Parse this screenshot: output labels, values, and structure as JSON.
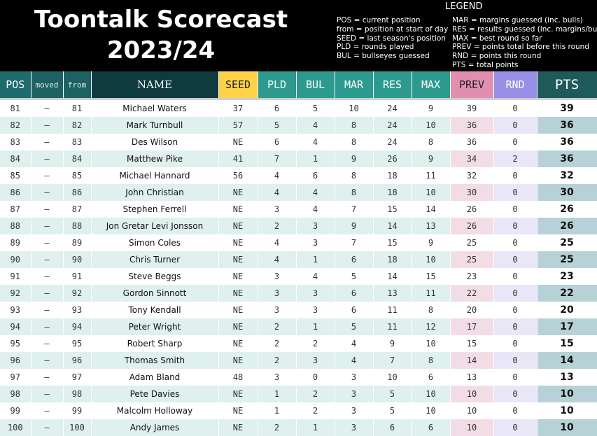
{
  "header": {
    "title_line1": "Toontalk Scorecast",
    "title_line2": "2023/24",
    "legend_title": "LEGEND",
    "legend_left": [
      "POS = current position",
      "from = position at start of day",
      "SEED = last season's position",
      "PLD = rounds played",
      "BUL = bullseyes guessed"
    ],
    "legend_right": [
      "MAR = margins guessed (inc. bulls)",
      "RES = results guessed (inc. margins/bulls)",
      "MAX = best round so far",
      "PREV = points total before this round",
      "RND = points this round",
      "PTS = total points"
    ]
  },
  "columns": {
    "pos": "POS",
    "moved": "moved",
    "from": "from",
    "name": "NAME",
    "seed": "SEED",
    "pld": "PLD",
    "bul": "BUL",
    "mar": "MAR",
    "res": "RES",
    "max": "MAX",
    "prev": "PREV",
    "rnd": "RND",
    "pts": "PTS"
  },
  "colors": {
    "header_bg": "#000000",
    "teal": "#2c9a8f",
    "seed": "#ffd24a",
    "prev": "#e08fb1",
    "rnd": "#9a8fe6"
  },
  "rows": [
    {
      "pos": "81",
      "moved": "–",
      "from": "81",
      "name": "Michael Waters",
      "seed": "37",
      "pld": "6",
      "bul": "5",
      "mar": "10",
      "res": "24",
      "max": "9",
      "prev": "39",
      "rnd": "0",
      "pts": "39"
    },
    {
      "pos": "82",
      "moved": "–",
      "from": "82",
      "name": "Mark Turnbull",
      "seed": "57",
      "pld": "5",
      "bul": "4",
      "mar": "8",
      "res": "24",
      "max": "10",
      "prev": "36",
      "rnd": "0",
      "pts": "36"
    },
    {
      "pos": "83",
      "moved": "–",
      "from": "83",
      "name": "Des Wilson",
      "seed": "NE",
      "pld": "6",
      "bul": "4",
      "mar": "8",
      "res": "24",
      "max": "8",
      "prev": "36",
      "rnd": "0",
      "pts": "36"
    },
    {
      "pos": "84",
      "moved": "–",
      "from": "84",
      "name": "Matthew Pike",
      "seed": "41",
      "pld": "7",
      "bul": "1",
      "mar": "9",
      "res": "26",
      "max": "9",
      "prev": "34",
      "rnd": "2",
      "pts": "36"
    },
    {
      "pos": "85",
      "moved": "–",
      "from": "85",
      "name": "Michael Hannard",
      "seed": "56",
      "pld": "4",
      "bul": "6",
      "mar": "8",
      "res": "18",
      "max": "11",
      "prev": "32",
      "rnd": "0",
      "pts": "32"
    },
    {
      "pos": "86",
      "moved": "–",
      "from": "86",
      "name": "John Christian",
      "seed": "NE",
      "pld": "4",
      "bul": "4",
      "mar": "8",
      "res": "18",
      "max": "10",
      "prev": "30",
      "rnd": "0",
      "pts": "30"
    },
    {
      "pos": "87",
      "moved": "–",
      "from": "87",
      "name": "Stephen Ferrell",
      "seed": "NE",
      "pld": "3",
      "bul": "4",
      "mar": "7",
      "res": "15",
      "max": "14",
      "prev": "26",
      "rnd": "0",
      "pts": "26"
    },
    {
      "pos": "88",
      "moved": "–",
      "from": "88",
      "name": "Jon Gretar Levi Jonsson",
      "seed": "NE",
      "pld": "2",
      "bul": "3",
      "mar": "9",
      "res": "14",
      "max": "13",
      "prev": "26",
      "rnd": "0",
      "pts": "26"
    },
    {
      "pos": "89",
      "moved": "–",
      "from": "89",
      "name": "Simon Coles",
      "seed": "NE",
      "pld": "4",
      "bul": "3",
      "mar": "7",
      "res": "15",
      "max": "9",
      "prev": "25",
      "rnd": "0",
      "pts": "25"
    },
    {
      "pos": "90",
      "moved": "–",
      "from": "90",
      "name": "Chris Turner",
      "seed": "NE",
      "pld": "4",
      "bul": "1",
      "mar": "6",
      "res": "18",
      "max": "10",
      "prev": "25",
      "rnd": "0",
      "pts": "25"
    },
    {
      "pos": "91",
      "moved": "–",
      "from": "91",
      "name": "Steve Beggs",
      "seed": "NE",
      "pld": "3",
      "bul": "4",
      "mar": "5",
      "res": "14",
      "max": "15",
      "prev": "23",
      "rnd": "0",
      "pts": "23"
    },
    {
      "pos": "92",
      "moved": "–",
      "from": "92",
      "name": "Gordon Sinnott",
      "seed": "NE",
      "pld": "3",
      "bul": "3",
      "mar": "6",
      "res": "13",
      "max": "11",
      "prev": "22",
      "rnd": "0",
      "pts": "22"
    },
    {
      "pos": "93",
      "moved": "–",
      "from": "93",
      "name": "Tony Kendall",
      "seed": "NE",
      "pld": "3",
      "bul": "3",
      "mar": "6",
      "res": "11",
      "max": "8",
      "prev": "20",
      "rnd": "0",
      "pts": "20"
    },
    {
      "pos": "94",
      "moved": "–",
      "from": "94",
      "name": "Peter Wright",
      "seed": "NE",
      "pld": "2",
      "bul": "1",
      "mar": "5",
      "res": "11",
      "max": "12",
      "prev": "17",
      "rnd": "0",
      "pts": "17"
    },
    {
      "pos": "95",
      "moved": "–",
      "from": "95",
      "name": "Robert Sharp",
      "seed": "NE",
      "pld": "2",
      "bul": "2",
      "mar": "4",
      "res": "9",
      "max": "10",
      "prev": "15",
      "rnd": "0",
      "pts": "15"
    },
    {
      "pos": "96",
      "moved": "–",
      "from": "96",
      "name": "Thomas Smith",
      "seed": "NE",
      "pld": "2",
      "bul": "3",
      "mar": "4",
      "res": "7",
      "max": "8",
      "prev": "14",
      "rnd": "0",
      "pts": "14"
    },
    {
      "pos": "97",
      "moved": "–",
      "from": "97",
      "name": "Adam Bland",
      "seed": "48",
      "pld": "3",
      "bul": "0",
      "mar": "3",
      "res": "10",
      "max": "6",
      "prev": "13",
      "rnd": "0",
      "pts": "13"
    },
    {
      "pos": "98",
      "moved": "–",
      "from": "98",
      "name": "Pete Davies",
      "seed": "NE",
      "pld": "1",
      "bul": "2",
      "mar": "3",
      "res": "5",
      "max": "10",
      "prev": "10",
      "rnd": "0",
      "pts": "10"
    },
    {
      "pos": "99",
      "moved": "–",
      "from": "99",
      "name": "Malcolm Holloway",
      "seed": "NE",
      "pld": "1",
      "bul": "2",
      "mar": "3",
      "res": "5",
      "max": "10",
      "prev": "10",
      "rnd": "0",
      "pts": "10"
    },
    {
      "pos": "100",
      "moved": "–",
      "from": "100",
      "name": "Andy James",
      "seed": "NE",
      "pld": "2",
      "bul": "1",
      "mar": "3",
      "res": "6",
      "max": "6",
      "prev": "10",
      "rnd": "0",
      "pts": "10"
    }
  ]
}
